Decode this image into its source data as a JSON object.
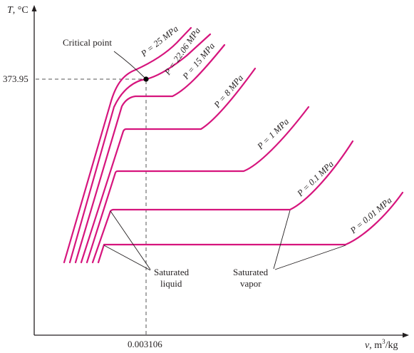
{
  "axes": {
    "y_label_var": "T",
    "y_label_unit": ", °C",
    "x_label_var": "v",
    "x_label_unit": ", m",
    "x_label_exp": "3",
    "x_label_tail": "/kg"
  },
  "critical": {
    "temperature_label": "373.95",
    "volume_label": "0.003106",
    "label": "Critical point"
  },
  "isobars": [
    {
      "label": "P = 25 MPa"
    },
    {
      "label": "P = 22.06 MPa"
    },
    {
      "label": "P = 15 MPa"
    },
    {
      "label": "P = 8 MPa"
    },
    {
      "label": "P = 1 MPa"
    },
    {
      "label": "P = 0.1 MPa"
    },
    {
      "label": "P = 0.01 MPa"
    }
  ],
  "annotations": {
    "sat_liquid_line1": "Saturated",
    "sat_liquid_line2": "liquid",
    "sat_vapor_line1": "Saturated",
    "sat_vapor_line2": "vapor"
  },
  "colors": {
    "isobar": "#d6157d",
    "text": "#231f20",
    "guide": "#555555"
  }
}
